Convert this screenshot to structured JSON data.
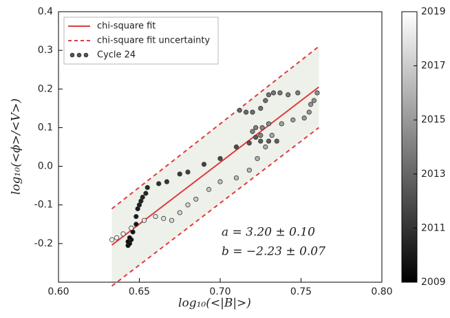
{
  "chart_data": {
    "type": "scatter",
    "xlabel": "log₁₀(<|B|>)",
    "ylabel": "log₁₀(<ϕ>/<V>)",
    "xlim": [
      0.6,
      0.8
    ],
    "xticks": [
      {
        "value": 0.6,
        "label": "0.60"
      },
      {
        "value": 0.65,
        "label": "0.65"
      },
      {
        "value": 0.7,
        "label": "0.70"
      },
      {
        "value": 0.75,
        "label": "0.75"
      },
      {
        "value": 0.8,
        "label": "0.80"
      }
    ],
    "ylim": [
      -0.3,
      0.4
    ],
    "yticks": [
      -0.2,
      -0.1,
      {
        "value": 0,
        "label": "0.0"
      },
      0.1,
      0.2,
      0.3,
      0.4
    ],
    "legend": "upper left",
    "series": [
      {
        "name": "chi-square fit",
        "type": "line",
        "style": "solid",
        "color": "#e03a3a",
        "x": [
          0.633,
          0.761
        ],
        "values": [
          -0.204,
          0.205
        ]
      },
      {
        "name": "chi-square fit uncertainty",
        "type": "band",
        "style": "dashed",
        "color": "#e03a3a",
        "fill": "#eef0ea",
        "x": [
          0.633,
          0.761
        ],
        "values": [
          -0.11,
          0.31
        ],
        "lower": [
          -0.31,
          0.1
        ]
      },
      {
        "name": "Cycle 24",
        "type": "scatter",
        "color": "#555555",
        "x": [
          0.643,
          0.644,
          0.643,
          0.645,
          0.644,
          0.646,
          0.648,
          0.648,
          0.649,
          0.65,
          0.651,
          0.652,
          0.654,
          0.655,
          0.662,
          0.667,
          0.675,
          0.68,
          0.69,
          0.7,
          0.71,
          0.718,
          0.722,
          0.725,
          0.73,
          0.735,
          0.712,
          0.716,
          0.72,
          0.725,
          0.728,
          0.73,
          0.733,
          0.737,
          0.742,
          0.748,
          0.722,
          0.72,
          0.725,
          0.726,
          0.73,
          0.76,
          0.758,
          0.756,
          0.755,
          0.752,
          0.745,
          0.738,
          0.732,
          0.728,
          0.723,
          0.718,
          0.71,
          0.7,
          0.693,
          0.685,
          0.68,
          0.675,
          0.67,
          0.665,
          0.66,
          0.653,
          0.645,
          0.64,
          0.636,
          0.633
        ],
        "values": [
          -0.205,
          -0.2,
          -0.195,
          -0.19,
          -0.185,
          -0.17,
          -0.15,
          -0.13,
          -0.11,
          -0.1,
          -0.09,
          -0.08,
          -0.07,
          -0.055,
          -0.045,
          -0.04,
          -0.02,
          -0.015,
          0.005,
          0.02,
          0.05,
          0.06,
          0.075,
          0.065,
          0.065,
          0.065,
          0.145,
          0.14,
          0.14,
          0.15,
          0.17,
          0.185,
          0.19,
          0.19,
          0.185,
          0.19,
          0.1,
          0.09,
          0.08,
          0.1,
          0.11,
          0.19,
          0.17,
          0.16,
          0.14,
          0.125,
          0.12,
          0.11,
          0.08,
          0.05,
          0.02,
          -0.01,
          -0.03,
          -0.04,
          -0.06,
          -0.085,
          -0.1,
          -0.12,
          -0.14,
          -0.135,
          -0.13,
          -0.14,
          -0.16,
          -0.175,
          -0.185,
          -0.19
        ],
        "years": [
          2009.2,
          2009.3,
          2009.4,
          2009.5,
          2009.6,
          2009.8,
          2009.9,
          2010.0,
          2010.1,
          2010.2,
          2010.3,
          2010.4,
          2010.5,
          2010.6,
          2010.9,
          2011.1,
          2011.3,
          2011.5,
          2011.7,
          2011.9,
          2012.1,
          2012.3,
          2012.5,
          2012.6,
          2012.7,
          2012.8,
          2013.0,
          2013.1,
          2013.2,
          2013.3,
          2013.4,
          2013.5,
          2013.6,
          2013.7,
          2013.8,
          2013.9,
          2014.0,
          2014.1,
          2014.2,
          2014.3,
          2014.4,
          2014.6,
          2014.7,
          2014.8,
          2014.9,
          2015.0,
          2015.2,
          2015.4,
          2015.6,
          2015.8,
          2016.0,
          2016.2,
          2016.4,
          2016.6,
          2016.8,
          2017.0,
          2017.2,
          2017.4,
          2017.6,
          2017.8,
          2018.0,
          2018.2,
          2018.4,
          2018.6,
          2018.8,
          2018.9
        ]
      }
    ],
    "colorbar": {
      "cmap": "gray",
      "lim": [
        2009,
        2019
      ],
      "ticks": [
        2009,
        2011,
        2013,
        2015,
        2017,
        2019
      ]
    },
    "annotations": [
      "a = 3.20 ± 0.10",
      "b = −2.23 ± 0.07"
    ]
  }
}
